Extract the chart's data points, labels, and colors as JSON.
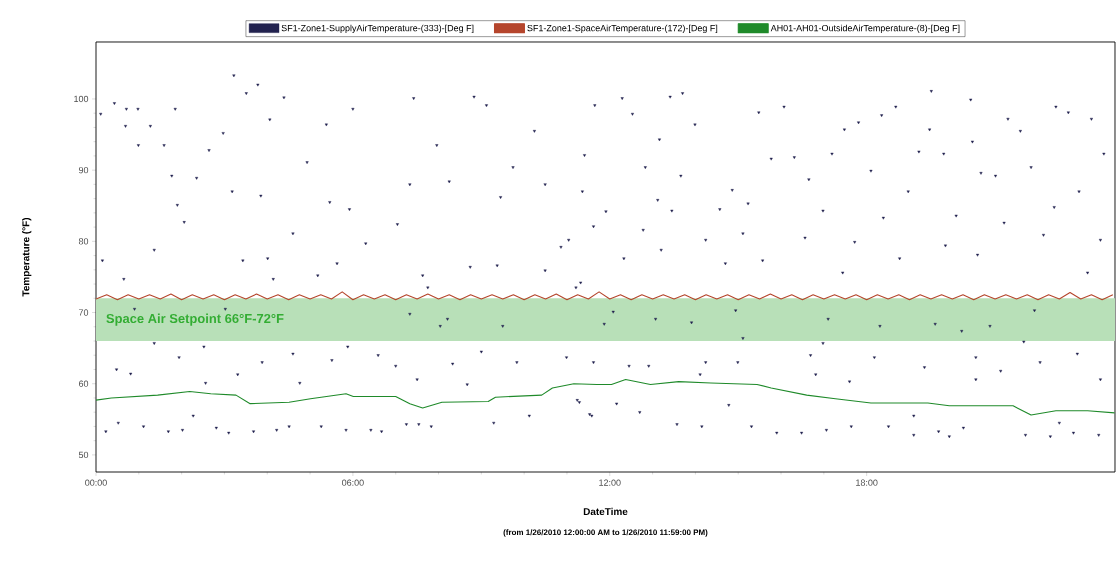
{
  "chart_data": {
    "type": "scatter",
    "xlabel": "DateTime",
    "ylabel": "Temperature (°F)",
    "annotations": [
      "(from 1/26/2010 12:00:00 AM to 1/26/2010 11:59:00 PM)"
    ],
    "xlim": [
      0,
      23.8
    ],
    "ylim": [
      47.6,
      108
    ],
    "xticks": [
      {
        "value": 0,
        "label": "00:00"
      },
      {
        "value": 6,
        "label": "06:00"
      },
      {
        "value": 12,
        "label": "12:00"
      },
      {
        "value": 18,
        "label": "18:00"
      }
    ],
    "yticks": [
      50,
      60,
      70,
      80,
      90,
      100
    ],
    "legend": "top",
    "bands": [
      {
        "axis": "y",
        "from": 66,
        "to": 72,
        "label": "Space Air Setpoint 66°F-72°F",
        "color": "#b8e0b8"
      }
    ],
    "series": [
      {
        "name": "SF1-Zone1-SupplyAirTemperature-(333)-[Deg F]",
        "type": "scatter",
        "marker": "triangle",
        "color": "#22224f",
        "x": [
          0.11,
          0.43,
          0.71,
          0.98,
          0.69,
          0.99,
          1.27,
          1.59,
          1.85,
          1.77,
          1.9,
          2.06,
          2.35,
          2.64,
          2.97,
          3.22,
          3.18,
          3.51,
          3.78,
          3.85,
          4.06,
          4.39,
          4.6,
          4.93,
          5.38,
          5.46,
          5.92,
          6.0,
          6.3,
          7.04,
          7.42,
          7.33,
          7.96,
          8.25,
          8.83,
          9.12,
          9.45,
          9.74,
          10.24,
          10.49,
          10.86,
          11.36,
          11.65,
          11.04,
          12.29,
          12.53,
          11.41,
          11.91,
          11.62,
          12.78,
          12.83,
          13.16,
          13.41,
          13.7,
          13.99,
          13.66,
          13.45,
          13.12,
          14.24,
          14.57,
          14.86,
          15.23,
          15.11,
          15.48,
          16.07,
          15.77,
          16.31,
          16.65,
          16.56,
          16.98,
          17.19,
          17.48,
          17.81,
          17.72,
          18.1,
          18.39,
          18.35,
          18.68,
          18.97,
          19.22,
          19.51,
          19.47,
          19.84,
          19.8,
          20.09,
          20.43,
          20.47,
          20.67,
          21.01,
          21.21,
          21.3,
          21.59,
          21.84,
          22.13,
          22.42,
          22.71,
          22.38,
          22.96,
          23.25,
          23.54,
          23.46,
          0.15,
          0.65,
          1.36,
          0.48,
          0.81,
          0.23,
          0.52,
          1.11,
          1.69,
          2.02,
          2.27,
          1.36,
          1.94,
          2.56,
          2.52,
          3.31,
          2.81,
          3.1,
          3.43,
          3.68,
          4.22,
          4.51,
          3.88,
          4.6,
          4.01,
          4.14,
          5.26,
          5.84,
          5.51,
          5.63,
          5.88,
          4.76,
          5.18,
          6.42,
          6.67,
          7.0,
          7.25,
          7.54,
          7.83,
          7.5,
          7.63,
          7.75,
          6.59,
          8.33,
          8.67,
          9.0,
          9.29,
          8.74,
          9.37,
          9.83,
          10.12,
          10.49,
          10.99,
          11.24,
          11.53,
          11.32,
          8.21,
          8.04,
          9.5,
          7.33,
          0.9,
          3.02,
          11.21,
          11.87,
          12.08,
          13.07,
          13.91,
          14.94,
          15.11,
          16.98,
          17.1,
          18.31,
          19.6,
          20.22,
          20.88,
          21.92,
          21.67,
          11.62,
          12.45,
          12.91,
          14.24,
          14.99,
          16.69,
          16.81,
          18.18,
          19.35,
          20.55,
          21.13,
          22.05,
          22.92,
          23.46,
          14.11,
          17.6,
          20.55,
          11.29,
          12.16,
          12.7,
          11.58,
          13.57,
          14.15,
          15.31,
          15.9,
          16.48,
          17.06,
          17.64,
          18.51,
          19.1,
          19.68,
          19.93,
          20.26,
          21.71,
          22.29,
          22.83,
          23.42,
          14.78,
          19.1,
          22.5,
          12.33,
          13.2,
          15.57,
          18.77,
          20.59,
          23.16,
          17.44,
          14.7
        ],
        "values": [
          97.9,
          99.4,
          98.6,
          98.6,
          96.2,
          93.5,
          96.2,
          93.5,
          98.6,
          89.2,
          85.1,
          82.7,
          88.9,
          92.8,
          95.2,
          103.3,
          87.0,
          100.8,
          102.0,
          86.4,
          97.1,
          100.2,
          81.1,
          91.1,
          96.4,
          85.5,
          84.5,
          98.6,
          79.7,
          82.4,
          100.1,
          88.0,
          93.5,
          88.4,
          100.3,
          99.1,
          86.2,
          90.4,
          95.5,
          88.0,
          79.2,
          87.0,
          99.1,
          80.2,
          100.1,
          97.9,
          92.1,
          84.2,
          82.1,
          81.6,
          90.4,
          94.3,
          100.3,
          100.8,
          96.4,
          89.2,
          84.3,
          85.8,
          80.2,
          84.5,
          87.2,
          85.3,
          81.1,
          98.1,
          98.9,
          91.6,
          91.8,
          88.7,
          80.5,
          84.3,
          92.3,
          95.7,
          96.7,
          79.9,
          89.9,
          83.3,
          97.7,
          98.9,
          87.0,
          92.6,
          101.1,
          95.7,
          79.4,
          92.3,
          83.6,
          99.9,
          94.0,
          89.6,
          89.2,
          82.6,
          97.2,
          95.5,
          90.4,
          80.9,
          98.9,
          98.1,
          84.8,
          87.0,
          97.2,
          92.3,
          80.2,
          77.3,
          74.7,
          78.8,
          62.0,
          61.4,
          53.3,
          54.5,
          54.0,
          53.3,
          53.5,
          55.5,
          65.7,
          63.7,
          60.1,
          65.2,
          61.3,
          53.8,
          53.1,
          77.3,
          53.3,
          53.5,
          54.0,
          63.0,
          64.2,
          77.6,
          74.7,
          54.0,
          53.5,
          63.3,
          76.9,
          65.2,
          60.1,
          75.2,
          53.5,
          53.3,
          62.5,
          54.3,
          54.3,
          54.0,
          60.6,
          75.2,
          73.5,
          64.0,
          62.8,
          59.9,
          64.5,
          54.5,
          76.4,
          76.6,
          63.0,
          55.5,
          75.9,
          63.7,
          57.7,
          55.7,
          74.2,
          69.1,
          68.1,
          68.1,
          69.8,
          70.5,
          70.5,
          73.5,
          68.4,
          70.1,
          69.1,
          68.6,
          70.3,
          66.4,
          65.7,
          69.1,
          68.1,
          68.4,
          67.4,
          68.1,
          70.3,
          65.9,
          63.0,
          62.5,
          62.5,
          63.0,
          63.0,
          64.0,
          61.3,
          63.7,
          62.3,
          63.7,
          61.8,
          63.0,
          64.2,
          60.6,
          61.3,
          60.3,
          60.6,
          57.4,
          57.2,
          56.0,
          55.5,
          54.3,
          54.0,
          54.0,
          53.1,
          53.1,
          53.5,
          54.0,
          54.0,
          52.8,
          53.3,
          52.6,
          53.8,
          52.8,
          52.6,
          53.1,
          52.8,
          57.0,
          55.5,
          54.5,
          77.6,
          78.8,
          77.3,
          77.6,
          78.1,
          75.6,
          75.6,
          76.9
        ]
      },
      {
        "name": "SF1-Zone1-SpaceAirTemperature-(172)-[Deg F]",
        "type": "line",
        "color": "#b5452c",
        "x": [
          0,
          0.25,
          0.5,
          0.75,
          1,
          1.25,
          1.5,
          1.75,
          2,
          2.25,
          2.5,
          2.75,
          3,
          3.25,
          3.5,
          3.75,
          4,
          4.25,
          4.5,
          4.75,
          5,
          5.25,
          5.5,
          5.75,
          6,
          6.25,
          6.5,
          6.75,
          7,
          7.25,
          7.5,
          7.75,
          8,
          8.25,
          8.5,
          8.75,
          9,
          9.25,
          9.5,
          9.75,
          10,
          10.25,
          10.5,
          10.75,
          11,
          11.25,
          11.5,
          11.75,
          12,
          12.25,
          12.5,
          12.75,
          13,
          13.25,
          13.5,
          13.75,
          14,
          14.25,
          14.5,
          14.75,
          15,
          15.25,
          15.5,
          15.75,
          16,
          16.25,
          16.5,
          16.75,
          17,
          17.25,
          17.5,
          17.75,
          18,
          18.25,
          18.5,
          18.75,
          19,
          19.25,
          19.5,
          19.75,
          20,
          20.25,
          20.5,
          20.75,
          21,
          21.25,
          21.5,
          21.75,
          22,
          22.25,
          22.5,
          22.75,
          23,
          23.25,
          23.5,
          23.75
        ],
        "values": [
          71.9,
          72.5,
          71.8,
          72.5,
          71.9,
          72.5,
          71.9,
          72.6,
          71.8,
          72.5,
          71.9,
          72.5,
          71.8,
          72.5,
          71.9,
          72.6,
          71.9,
          72.5,
          71.8,
          72.5,
          71.9,
          72.5,
          71.9,
          72.9,
          71.8,
          72.5,
          71.9,
          72.5,
          71.8,
          72.5,
          71.9,
          72.6,
          71.9,
          72.5,
          71.8,
          72.5,
          71.9,
          72.5,
          71.9,
          72.5,
          71.8,
          72.5,
          71.9,
          72.6,
          71.8,
          72.5,
          71.9,
          72.9,
          71.9,
          72.5,
          71.8,
          72.5,
          71.9,
          72.5,
          71.9,
          72.5,
          71.8,
          72.5,
          71.9,
          72.5,
          71.8,
          72.5,
          71.9,
          72.6,
          71.9,
          72.5,
          71.8,
          72.5,
          71.9,
          72.5,
          71.9,
          72.5,
          71.8,
          72.5,
          71.9,
          72.5,
          71.8,
          72.5,
          71.9,
          72.5,
          71.9,
          72.5,
          71.8,
          72.5,
          71.9,
          72.5,
          71.9,
          72.5,
          71.8,
          72.5,
          71.9,
          72.8,
          71.9,
          72.5,
          71.8,
          72.5
        ]
      },
      {
        "name": "AH01-AH01-OutsideAirTemperature-(8)-[Deg F]",
        "type": "line",
        "color": "#1f8a2a",
        "x": [
          0,
          0.36,
          1.44,
          2.19,
          2.68,
          3.27,
          3.6,
          4.51,
          5.01,
          5.84,
          6.01,
          7.0,
          7.33,
          7.63,
          8.08,
          9.16,
          9.33,
          10.41,
          10.66,
          11.16,
          11.7,
          12.04,
          12.37,
          12.95,
          13.61,
          14.36,
          15.44,
          15.77,
          16.6,
          17.27,
          18.1,
          19.43,
          19.93,
          21.42,
          21.84,
          22.42,
          23.16,
          23.79
        ],
        "values": [
          57.7,
          58.0,
          58.4,
          58.9,
          58.6,
          58.4,
          57.2,
          57.4,
          57.9,
          58.6,
          58.2,
          58.2,
          57.2,
          56.6,
          57.4,
          57.5,
          58.1,
          58.4,
          59.4,
          60.0,
          59.9,
          59.9,
          60.6,
          59.9,
          60.3,
          60.1,
          59.9,
          59.4,
          58.4,
          57.9,
          57.3,
          57.3,
          56.9,
          56.9,
          55.6,
          56.2,
          56.2,
          55.9
        ]
      }
    ]
  }
}
